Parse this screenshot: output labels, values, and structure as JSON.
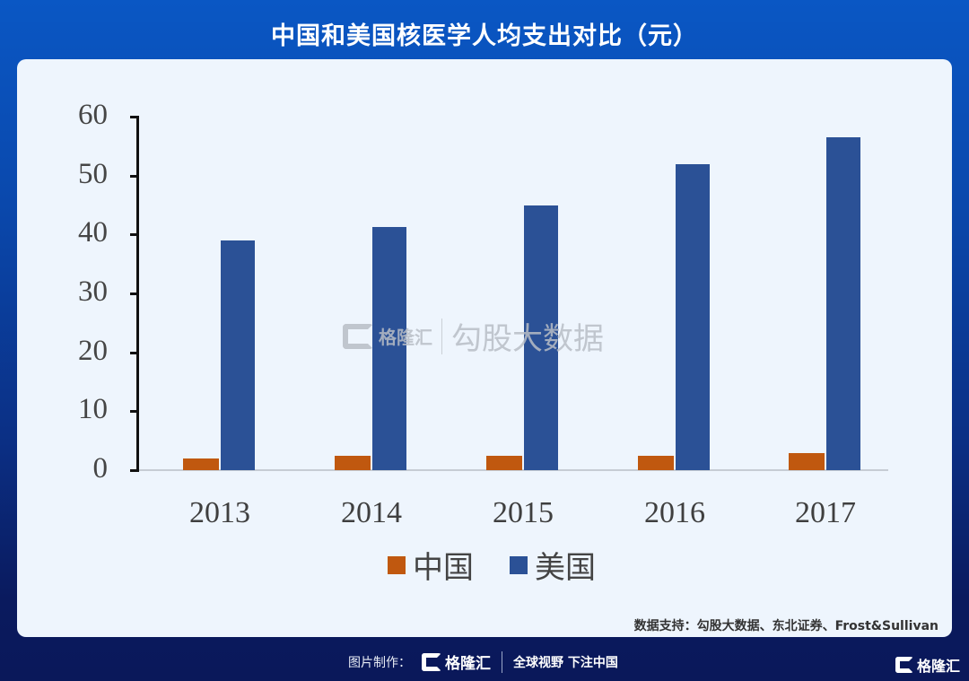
{
  "header": {
    "title": "中国和美国核医学人均支出对比（元）"
  },
  "watermark": {
    "brand": "格隆汇",
    "text": "勾股大数据"
  },
  "source": {
    "text": "数据支持：勾股大数据、东北证券、Frost&Sullivan"
  },
  "footer": {
    "label": "图片制作：",
    "brand": "格隆汇",
    "slogan": "全球视野 下注中国",
    "corner_brand": "格隆汇"
  },
  "colors": {
    "china": "#c0580f",
    "usa": "#2b5196",
    "panel": "#eef5fd"
  },
  "chart_data": {
    "type": "bar",
    "title": "中国和美国核医学人均支出对比（元）",
    "xlabel": "",
    "ylabel": "",
    "categories": [
      "2013",
      "2014",
      "2015",
      "2016",
      "2017"
    ],
    "series": [
      {
        "name": "中国",
        "color": "#c0580f",
        "values": [
          2.0,
          2.4,
          2.4,
          2.4,
          2.9
        ]
      },
      {
        "name": "美国",
        "color": "#2b5196",
        "values": [
          39.0,
          41.3,
          45.0,
          52.0,
          56.5
        ]
      }
    ],
    "ylim": [
      0,
      60
    ],
    "yticks": [
      0,
      10,
      20,
      30,
      40,
      50,
      60
    ],
    "grid": false,
    "legend_position": "bottom"
  },
  "legend": [
    {
      "label": "中国"
    },
    {
      "label": "美国"
    }
  ]
}
